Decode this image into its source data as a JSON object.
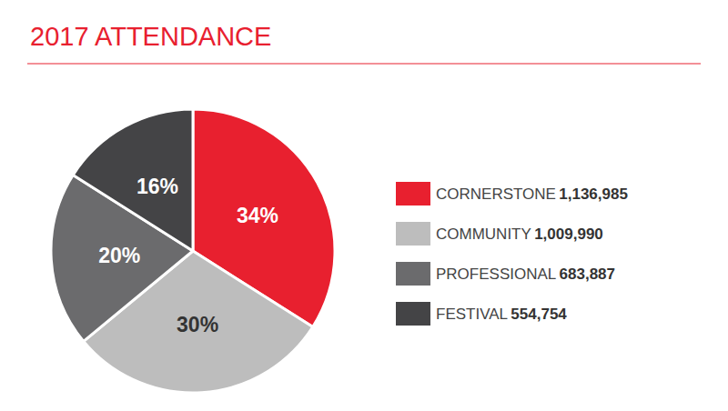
{
  "chart_data": {
    "type": "pie",
    "title": "2017 ATTENDANCE",
    "categories": [
      "CORNERSTONE",
      "COMMUNITY",
      "PROFESSIONAL",
      "FESTIVAL"
    ],
    "values": [
      34,
      30,
      20,
      16
    ],
    "value_labels": [
      "34%",
      "30%",
      "20%",
      "16%"
    ],
    "attendance": [
      1136985,
      1009990,
      683887,
      554754
    ],
    "colors": [
      "#e8202f",
      "#bdbdbd",
      "#6b6b6d",
      "#444446"
    ],
    "legend": "right",
    "data_labels": true
  }
}
